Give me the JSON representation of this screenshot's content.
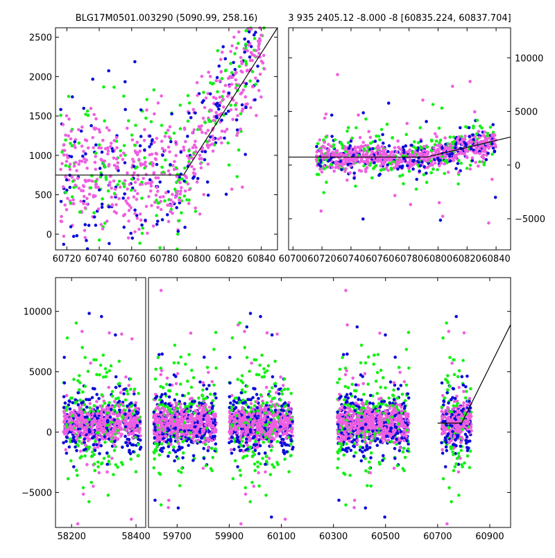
{
  "colors": {
    "pink": "#ee5fe0",
    "green": "#15f015",
    "blue": "#0b0bd8",
    "fit": "#000000"
  },
  "chart_data": [
    {
      "type": "scatter",
      "title": "BLG17M0501.003290 (5090.99, 258.16)",
      "xlim": [
        60713,
        60850
      ],
      "ylim": [
        -200,
        2620
      ],
      "xticks": [
        "60720",
        "60740",
        "60760",
        "60780",
        "60800",
        "60820",
        "60840"
      ],
      "yticks": [
        "0",
        "500",
        "1000",
        "1500",
        "2000",
        "2500"
      ],
      "y_axis_side": "left",
      "grid": false,
      "fit_line": {
        "x": [
          60713,
          60792,
          60850
        ],
        "y": [
          750,
          750,
          2620
        ]
      }
    },
    {
      "type": "scatter",
      "title": "3 935 2405.12 -8.000 -8 [60835.224, 60837.704]",
      "xlim": [
        60697,
        60850
      ],
      "ylim": [
        -7900,
        12800
      ],
      "xticks": [
        "60700",
        "60720",
        "60740",
        "60760",
        "60780",
        "60800",
        "60820",
        "60840"
      ],
      "yticks": [
        "−5000",
        "0",
        "5000",
        "10000"
      ],
      "y_axis_side": "right",
      "grid": false,
      "fit_line": {
        "x": [
          60697,
          60792,
          60850
        ],
        "y": [
          750,
          750,
          2620
        ]
      }
    },
    {
      "type": "scatter",
      "title": "",
      "ylim": [
        -7900,
        12800
      ],
      "yticks": [
        "−5000",
        "0",
        "5000",
        "10000"
      ],
      "y_axis_side": "left",
      "grid": false,
      "segments": [
        {
          "xlim": [
            58150,
            58430
          ],
          "xticks": [
            "58200",
            "58400"
          ],
          "seasons": [
            [
              58175,
              58415
            ]
          ]
        },
        {
          "xlim": [
            59590,
            60980
          ],
          "xticks": [
            "59700",
            "59900",
            "60100",
            "60300",
            "60500",
            "60700",
            "60900"
          ],
          "seasons": [
            [
              59610,
              59850
            ],
            [
              59900,
              60145
            ],
            [
              60315,
              60590
            ],
            [
              60715,
              60830
            ]
          ]
        }
      ],
      "fit_line": {
        "x": [
          60700,
          60792,
          60980
        ],
        "y": [
          750,
          750,
          8900
        ]
      }
    }
  ]
}
